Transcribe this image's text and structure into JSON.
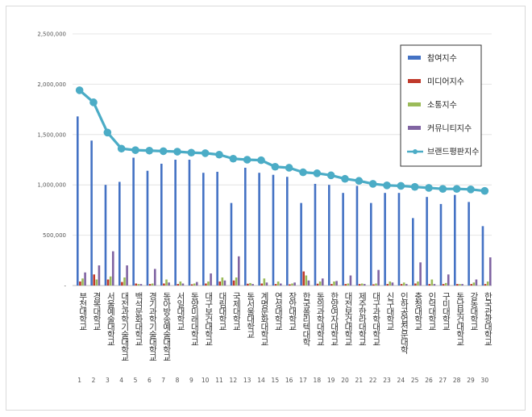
{
  "chart_data": {
    "type": "bar",
    "title": "",
    "xlabel": "",
    "ylabel": "",
    "ylim": [
      0,
      2500000
    ],
    "yticks": [
      "-",
      "500,000",
      "1,000,000",
      "1,500,000",
      "2,000,000",
      "2,500,000"
    ],
    "grid": true,
    "legend_position": "top-right",
    "ranks": [
      "1",
      "2",
      "3",
      "4",
      "5",
      "6",
      "7",
      "8",
      "9",
      "10",
      "11",
      "12",
      "13",
      "14",
      "15",
      "16",
      "17",
      "18",
      "19",
      "20",
      "21",
      "22",
      "23",
      "24",
      "25",
      "26",
      "27",
      "28",
      "29",
      "30"
    ],
    "categories": [
      "부천대학교",
      "경복대학교",
      "서울예술대학교",
      "대전과학기술대학교",
      "백석문화대학교",
      "경기과학기술대학교",
      "동아방송예술대학교",
      "서일대학교",
      "동양미래대학교",
      "대구보건대학교",
      "대림대학교",
      "국제대학교",
      "동서울대학교",
      "계명문화대학교",
      "연성대학교",
      "장안대학교",
      "한국폴리텍대학",
      "동의과학대학교",
      "한양여자대학교",
      "대전보건대학교",
      "제주한라대학교",
      "대구과학대학교",
      "신구대학교",
      "인하공업전문대학",
      "충청대학교",
      "인덕대학교",
      "구미대학교",
      "동남보건대학교",
      "강동대학교",
      "한국관광대학교"
    ],
    "series": [
      {
        "name": "참여지수",
        "color": "#4472c4",
        "values": [
          1680000,
          1440000,
          1000000,
          1030000,
          1270000,
          1140000,
          1210000,
          1250000,
          1250000,
          1120000,
          1130000,
          820000,
          1170000,
          1120000,
          1100000,
          1080000,
          820000,
          1010000,
          1000000,
          920000,
          990000,
          820000,
          920000,
          920000,
          670000,
          880000,
          810000,
          900000,
          830000,
          590000
        ]
      },
      {
        "name": "미디어지수",
        "color": "#c0392b",
        "values": [
          40000,
          110000,
          60000,
          35000,
          20000,
          15000,
          20000,
          15000,
          12000,
          20000,
          40000,
          50000,
          18000,
          20000,
          15000,
          12000,
          140000,
          18000,
          15000,
          15000,
          15000,
          12000,
          15000,
          15000,
          20000,
          15000,
          15000,
          15000,
          15000,
          15000
        ]
      },
      {
        "name": "소통지수",
        "color": "#9bbb59",
        "values": [
          70000,
          60000,
          90000,
          80000,
          15000,
          20000,
          60000,
          40000,
          20000,
          40000,
          80000,
          80000,
          25000,
          70000,
          40000,
          20000,
          100000,
          40000,
          40000,
          20000,
          20000,
          20000,
          40000,
          30000,
          40000,
          60000,
          25000,
          15000,
          30000,
          40000
        ]
      },
      {
        "name": "커뮤니티지수",
        "color": "#8064a2",
        "values": [
          130000,
          200000,
          340000,
          200000,
          15000,
          165000,
          30000,
          20000,
          35000,
          120000,
          50000,
          290000,
          15000,
          30000,
          20000,
          30000,
          50000,
          70000,
          45000,
          100000,
          15000,
          155000,
          30000,
          15000,
          230000,
          15000,
          110000,
          15000,
          60000,
          280000
        ]
      },
      {
        "name": "브랜드평판지수",
        "color": "#4bacc6",
        "values": [
          1940000,
          1820000,
          1520000,
          1360000,
          1345000,
          1340000,
          1335000,
          1330000,
          1320000,
          1315000,
          1300000,
          1260000,
          1250000,
          1245000,
          1180000,
          1170000,
          1125000,
          1115000,
          1095000,
          1060000,
          1040000,
          1010000,
          995000,
          990000,
          980000,
          970000,
          960000,
          960000,
          955000,
          940000
        ]
      }
    ]
  }
}
